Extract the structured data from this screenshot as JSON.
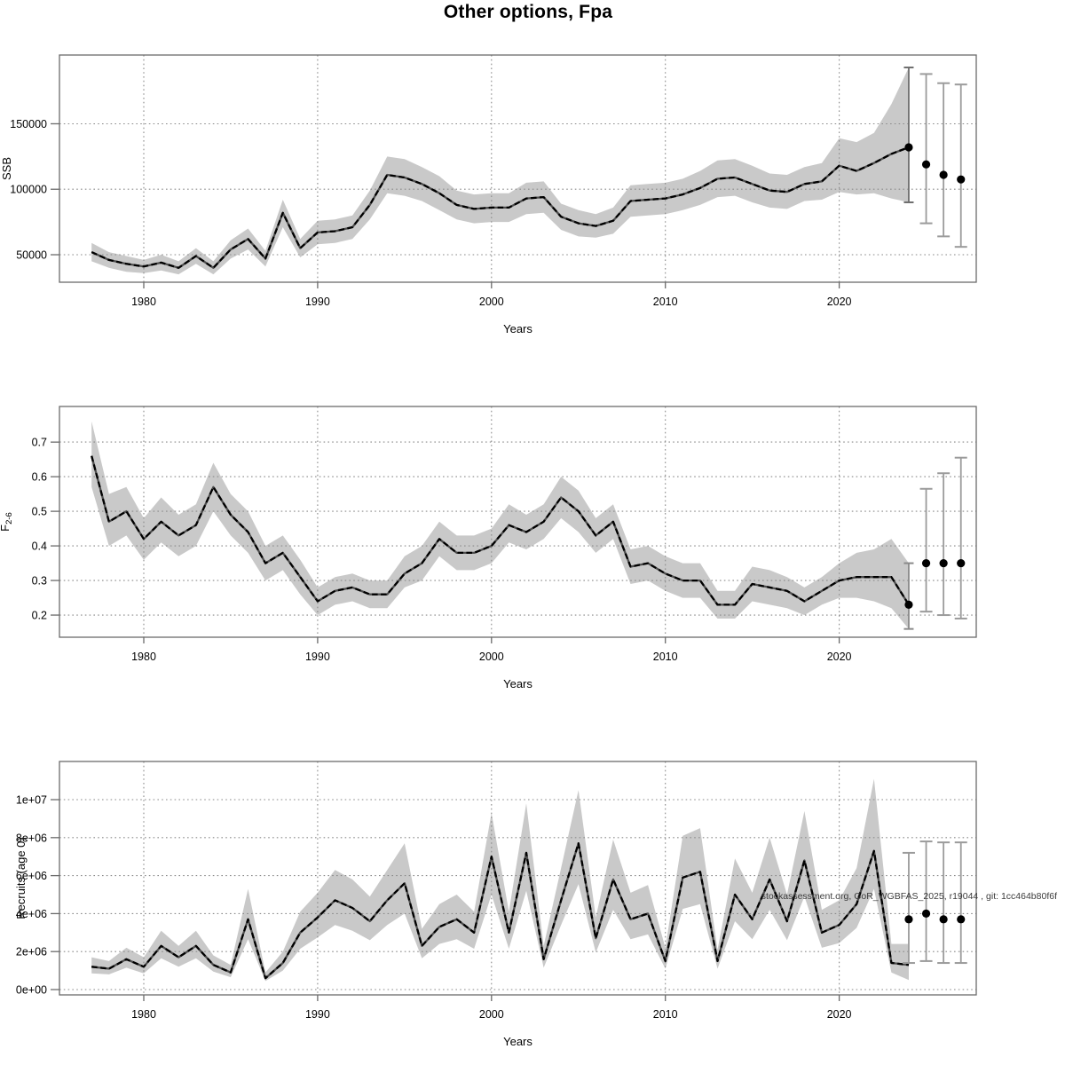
{
  "title": "Other options, Fpa",
  "watermark": "stockassessment.org, GoR_WGBFAS_2025, r19044 , git: 1cc464b80f6f",
  "colors": {
    "band": "#c9c9c9",
    "grid": "#8a8a8a",
    "line_core": "#4d4d4d",
    "line_dash": "#000000",
    "box": "#6b6b6b",
    "tick_text": "#000000",
    "forecast_bar": "#9b9b9b",
    "forecast_dot": "#000000",
    "watermark_text": "#3c3c3c"
  },
  "x_axis": {
    "label": "Years",
    "ticks": [
      {
        "year": 1980,
        "label": "1980"
      },
      {
        "year": 1990,
        "label": "1990"
      },
      {
        "year": 2000,
        "label": "2000"
      },
      {
        "year": 2010,
        "label": "2010"
      },
      {
        "year": 2020,
        "label": "2020"
      }
    ],
    "range": [
      1975.1,
      2027.9
    ]
  },
  "chart_data": [
    {
      "type": "line",
      "id": "ssb",
      "title": "",
      "xlabel": "Years",
      "ylabel": {
        "text": "SSB",
        "sub": ""
      },
      "ylim": [
        29000,
        202500
      ],
      "yticks": [
        {
          "v": 50000,
          "label": "50000"
        },
        {
          "v": 100000,
          "label": "100000"
        },
        {
          "v": 150000,
          "label": "150000"
        }
      ],
      "x": [
        1977,
        1978,
        1979,
        1980,
        1981,
        1982,
        1983,
        1984,
        1985,
        1986,
        1987,
        1988,
        1989,
        1990,
        1991,
        1992,
        1993,
        1994,
        1995,
        1996,
        1997,
        1998,
        1999,
        2000,
        2001,
        2002,
        2003,
        2004,
        2005,
        2006,
        2007,
        2008,
        2009,
        2010,
        2011,
        2012,
        2013,
        2014,
        2015,
        2016,
        2017,
        2018,
        2019,
        2020,
        2021,
        2022,
        2023,
        2024
      ],
      "series": [
        {
          "name": "estimate",
          "values": [
            52000,
            46000,
            43000,
            41000,
            44000,
            40000,
            49000,
            40000,
            54000,
            62000,
            47000,
            82000,
            55000,
            67000,
            68000,
            71000,
            88000,
            111000,
            109000,
            104000,
            97000,
            88000,
            85000,
            86000,
            86000,
            93000,
            94000,
            79000,
            74000,
            72000,
            76000,
            91000,
            92000,
            93000,
            96000,
            101000,
            108000,
            109000,
            104000,
            99000,
            98000,
            104000,
            106000,
            118000,
            114000,
            120000,
            127000,
            132000
          ]
        },
        {
          "name": "ci_upper",
          "values": [
            59000,
            52000,
            49000,
            46000,
            50000,
            45000,
            55000,
            45000,
            61000,
            70000,
            53000,
            92000,
            62000,
            76000,
            77000,
            80000,
            99000,
            125000,
            123000,
            117000,
            110000,
            99000,
            96000,
            97000,
            97000,
            105000,
            106000,
            89000,
            84000,
            81000,
            86000,
            103000,
            104000,
            105000,
            108000,
            114000,
            122000,
            123000,
            118000,
            112000,
            111000,
            117000,
            120000,
            139000,
            136000,
            143000,
            165000,
            193000
          ]
        },
        {
          "name": "ci_lower",
          "values": [
            45000,
            40000,
            37000,
            36000,
            38000,
            35000,
            43000,
            35000,
            47000,
            54000,
            41000,
            71000,
            48000,
            58000,
            59000,
            62000,
            77000,
            97000,
            95000,
            91000,
            84000,
            77000,
            74000,
            75000,
            75000,
            81000,
            82000,
            69000,
            64000,
            63000,
            66000,
            79000,
            80000,
            81000,
            84000,
            88000,
            94000,
            95000,
            90000,
            86000,
            85000,
            91000,
            92000,
            98000,
            96000,
            97000,
            93000,
            90000
          ]
        }
      ],
      "end_dot": true,
      "forecast": [
        {
          "year": 2024,
          "value": null,
          "lo": 90000,
          "hi": 193000,
          "color": "#6f6f6f"
        },
        {
          "year": 2025,
          "value": 119000,
          "lo": 74000,
          "hi": 188000,
          "color": "#9b9b9b"
        },
        {
          "year": 2026,
          "value": 111000,
          "lo": 64000,
          "hi": 181000,
          "color": "#9b9b9b"
        },
        {
          "year": 2027,
          "value": 107500,
          "lo": 56000,
          "hi": 180000,
          "color": "#9b9b9b"
        }
      ],
      "grid": true,
      "legend": null
    },
    {
      "type": "line",
      "id": "fbar",
      "title": "",
      "xlabel": "Years",
      "ylabel": {
        "text": "F̄",
        "sub": "2-6"
      },
      "ylim": [
        0.136,
        0.803
      ],
      "yticks": [
        {
          "v": 0.2,
          "label": "0.2"
        },
        {
          "v": 0.3,
          "label": "0.3"
        },
        {
          "v": 0.4,
          "label": "0.4"
        },
        {
          "v": 0.5,
          "label": "0.5"
        },
        {
          "v": 0.6,
          "label": "0.6"
        },
        {
          "v": 0.7,
          "label": "0.7"
        }
      ],
      "x": [
        1977,
        1978,
        1979,
        1980,
        1981,
        1982,
        1983,
        1984,
        1985,
        1986,
        1987,
        1988,
        1989,
        1990,
        1991,
        1992,
        1993,
        1994,
        1995,
        1996,
        1997,
        1998,
        1999,
        2000,
        2001,
        2002,
        2003,
        2004,
        2005,
        2006,
        2007,
        2008,
        2009,
        2010,
        2011,
        2012,
        2013,
        2014,
        2015,
        2016,
        2017,
        2018,
        2019,
        2020,
        2021,
        2022,
        2023,
        2024
      ],
      "series": [
        {
          "name": "estimate",
          "values": [
            0.66,
            0.47,
            0.5,
            0.42,
            0.47,
            0.43,
            0.46,
            0.57,
            0.49,
            0.44,
            0.35,
            0.38,
            0.31,
            0.24,
            0.27,
            0.28,
            0.26,
            0.26,
            0.32,
            0.35,
            0.42,
            0.38,
            0.38,
            0.4,
            0.46,
            0.44,
            0.47,
            0.54,
            0.5,
            0.43,
            0.47,
            0.34,
            0.35,
            0.32,
            0.3,
            0.3,
            0.23,
            0.23,
            0.29,
            0.28,
            0.27,
            0.24,
            0.27,
            0.3,
            0.31,
            0.31,
            0.31,
            0.23
          ]
        },
        {
          "name": "ci_upper",
          "values": [
            0.76,
            0.55,
            0.57,
            0.48,
            0.54,
            0.49,
            0.52,
            0.64,
            0.55,
            0.5,
            0.4,
            0.43,
            0.36,
            0.28,
            0.31,
            0.32,
            0.3,
            0.3,
            0.37,
            0.4,
            0.47,
            0.43,
            0.43,
            0.45,
            0.52,
            0.49,
            0.52,
            0.6,
            0.56,
            0.48,
            0.52,
            0.39,
            0.4,
            0.37,
            0.35,
            0.35,
            0.27,
            0.27,
            0.34,
            0.33,
            0.31,
            0.28,
            0.31,
            0.35,
            0.38,
            0.39,
            0.42,
            0.35
          ]
        },
        {
          "name": "ci_lower",
          "values": [
            0.57,
            0.4,
            0.43,
            0.36,
            0.41,
            0.37,
            0.4,
            0.5,
            0.43,
            0.38,
            0.3,
            0.33,
            0.26,
            0.2,
            0.23,
            0.24,
            0.22,
            0.22,
            0.28,
            0.3,
            0.37,
            0.33,
            0.33,
            0.35,
            0.41,
            0.39,
            0.42,
            0.48,
            0.44,
            0.38,
            0.42,
            0.29,
            0.3,
            0.27,
            0.25,
            0.25,
            0.19,
            0.19,
            0.24,
            0.23,
            0.22,
            0.2,
            0.23,
            0.25,
            0.25,
            0.24,
            0.22,
            0.16
          ]
        }
      ],
      "end_dot": true,
      "forecast": [
        {
          "year": 2024,
          "value": null,
          "lo": 0.16,
          "hi": 0.35,
          "color": "#8a8a8a"
        },
        {
          "year": 2025,
          "value": 0.35,
          "lo": 0.21,
          "hi": 0.565,
          "color": "#9b9b9b"
        },
        {
          "year": 2026,
          "value": 0.35,
          "lo": 0.2,
          "hi": 0.61,
          "color": "#9b9b9b"
        },
        {
          "year": 2027,
          "value": 0.35,
          "lo": 0.19,
          "hi": 0.655,
          "color": "#9b9b9b"
        }
      ],
      "grid": true,
      "legend": null
    },
    {
      "type": "line",
      "id": "recruits",
      "title": "",
      "xlabel": "Years",
      "ylabel": {
        "text": "Recruits (age 0)",
        "sub": ""
      },
      "ylim": [
        -280000,
        12010000
      ],
      "yticks": [
        {
          "v": 0,
          "label": "0e+00"
        },
        {
          "v": 2000000,
          "label": "2e+06"
        },
        {
          "v": 4000000,
          "label": "4e+06"
        },
        {
          "v": 6000000,
          "label": "6e+06"
        },
        {
          "v": 8000000,
          "label": "8e+06"
        },
        {
          "v": 10000000,
          "label": "1e+07"
        }
      ],
      "x": [
        1977,
        1978,
        1979,
        1980,
        1981,
        1982,
        1983,
        1984,
        1985,
        1986,
        1987,
        1988,
        1989,
        1990,
        1991,
        1992,
        1993,
        1994,
        1995,
        1996,
        1997,
        1998,
        1999,
        2000,
        2001,
        2002,
        2003,
        2004,
        2005,
        2006,
        2007,
        2008,
        2009,
        2010,
        2011,
        2012,
        2013,
        2014,
        2015,
        2016,
        2017,
        2018,
        2019,
        2020,
        2021,
        2022,
        2023,
        2024
      ],
      "series": [
        {
          "name": "estimate",
          "values": [
            1200000,
            1100000,
            1600000,
            1200000,
            2300000,
            1700000,
            2300000,
            1300000,
            900000,
            3700000,
            600000,
            1400000,
            3000000,
            3800000,
            4700000,
            4300000,
            3600000,
            4700000,
            5600000,
            2300000,
            3300000,
            3700000,
            3000000,
            7000000,
            3000000,
            7200000,
            1600000,
            4700000,
            7700000,
            2700000,
            5800000,
            3700000,
            4000000,
            1500000,
            5900000,
            6200000,
            1500000,
            5000000,
            3700000,
            5800000,
            3600000,
            6800000,
            3000000,
            3400000,
            4500000,
            7300000,
            1400000,
            1300000
          ]
        },
        {
          "name": "ci_upper",
          "values": [
            1700000,
            1500000,
            2200000,
            1700000,
            3100000,
            2300000,
            3100000,
            1800000,
            1300000,
            5300000,
            900000,
            2000000,
            4100000,
            5100000,
            6300000,
            5800000,
            4900000,
            6300000,
            7700000,
            3200000,
            4500000,
            5000000,
            4100000,
            9300000,
            4100000,
            9800000,
            2300000,
            6400000,
            10500000,
            3800000,
            7900000,
            5100000,
            5500000,
            2200000,
            8100000,
            8500000,
            2100000,
            6900000,
            5100000,
            8000000,
            5000000,
            9400000,
            4200000,
            4700000,
            6400000,
            11100000,
            2400000,
            2400000
          ]
        },
        {
          "name": "ci_lower",
          "values": [
            850000,
            800000,
            1150000,
            850000,
            1650000,
            1200000,
            1650000,
            950000,
            650000,
            2650000,
            450000,
            1000000,
            2150000,
            2750000,
            3400000,
            3100000,
            2600000,
            3400000,
            4000000,
            1650000,
            2400000,
            2650000,
            2150000,
            5000000,
            2150000,
            5200000,
            1150000,
            3400000,
            5550000,
            1950000,
            4200000,
            2650000,
            2900000,
            1100000,
            4250000,
            4500000,
            1100000,
            3600000,
            2650000,
            4200000,
            2600000,
            4900000,
            2200000,
            2450000,
            3250000,
            5300000,
            900000,
            500000
          ]
        }
      ],
      "end_dot": false,
      "forecast": [
        {
          "year": 2024,
          "value": 3700000,
          "lo": 1400000,
          "hi": 7200000,
          "color": "#9b9b9b"
        },
        {
          "year": 2025,
          "value": 4000000,
          "lo": 1500000,
          "hi": 7800000,
          "color": "#9b9b9b"
        },
        {
          "year": 2026,
          "value": 3700000,
          "lo": 1400000,
          "hi": 7750000,
          "color": "#9b9b9b"
        },
        {
          "year": 2027,
          "value": 3700000,
          "lo": 1400000,
          "hi": 7750000,
          "color": "#9b9b9b"
        }
      ],
      "grid": true,
      "legend": null
    }
  ]
}
